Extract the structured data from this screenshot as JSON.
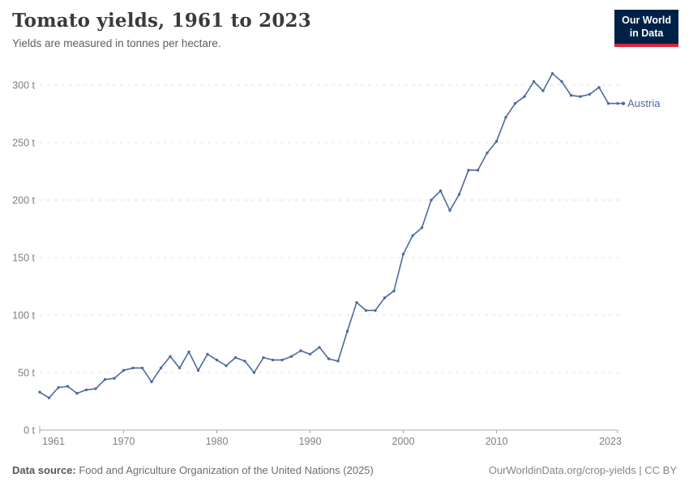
{
  "header": {
    "title": "Tomato yields, 1961 to 2023",
    "subtitle": "Yields are measured in tonnes per hectare."
  },
  "logo": {
    "line1": "Our World",
    "line2": "in Data",
    "bg_color": "#002147",
    "accent_color": "#d7263d"
  },
  "chart_data": {
    "type": "line",
    "title": "Tomato yields, 1961 to 2023",
    "unit": "tonnes per hectare",
    "x": [
      1961,
      1962,
      1963,
      1964,
      1965,
      1966,
      1967,
      1968,
      1969,
      1970,
      1971,
      1972,
      1973,
      1974,
      1975,
      1976,
      1977,
      1978,
      1979,
      1980,
      1981,
      1982,
      1983,
      1984,
      1985,
      1986,
      1987,
      1988,
      1989,
      1990,
      1991,
      1992,
      1993,
      1994,
      1995,
      1996,
      1997,
      1998,
      1999,
      2000,
      2001,
      2002,
      2003,
      2004,
      2005,
      2006,
      2007,
      2008,
      2009,
      2010,
      2011,
      2012,
      2013,
      2014,
      2015,
      2016,
      2017,
      2018,
      2019,
      2020,
      2021,
      2022,
      2023
    ],
    "series": [
      {
        "name": "Austria",
        "color": "#4c6a9c",
        "values": [
          33,
          28,
          37,
          38,
          32,
          35,
          36,
          44,
          45,
          52,
          54,
          54,
          42,
          54,
          64,
          54,
          68,
          52,
          66,
          61,
          56,
          63,
          60,
          50,
          63,
          61,
          61,
          64,
          69,
          66,
          72,
          62,
          60,
          86,
          111,
          104,
          104,
          115,
          121,
          153,
          169,
          176,
          200,
          208,
          191,
          205,
          226,
          226,
          241,
          251,
          272,
          284,
          290,
          303,
          295,
          310,
          303,
          291,
          290,
          292,
          298,
          284,
          284
        ]
      }
    ],
    "x_ticks": [
      1961,
      1970,
      1980,
      1990,
      2000,
      2010,
      2023
    ],
    "y_ticks": [
      0,
      50,
      100,
      150,
      200,
      250,
      300
    ],
    "y_tick_suffix": " t",
    "xlim": [
      1961,
      2023
    ],
    "ylim": [
      0,
      300
    ],
    "grid": "dashed-horizontal",
    "legend_position": "end-of-line",
    "end_label": "Austria",
    "colors": {
      "gridline": "#e0e0e0",
      "axis": "#a8a8a8",
      "tick_label": "#7f7f7f"
    }
  },
  "footer": {
    "source_label": "Data source:",
    "source_text": " Food and Agriculture Organization of the United Nations (2025)",
    "credit": "OurWorldinData.org/crop-yields | CC BY"
  }
}
